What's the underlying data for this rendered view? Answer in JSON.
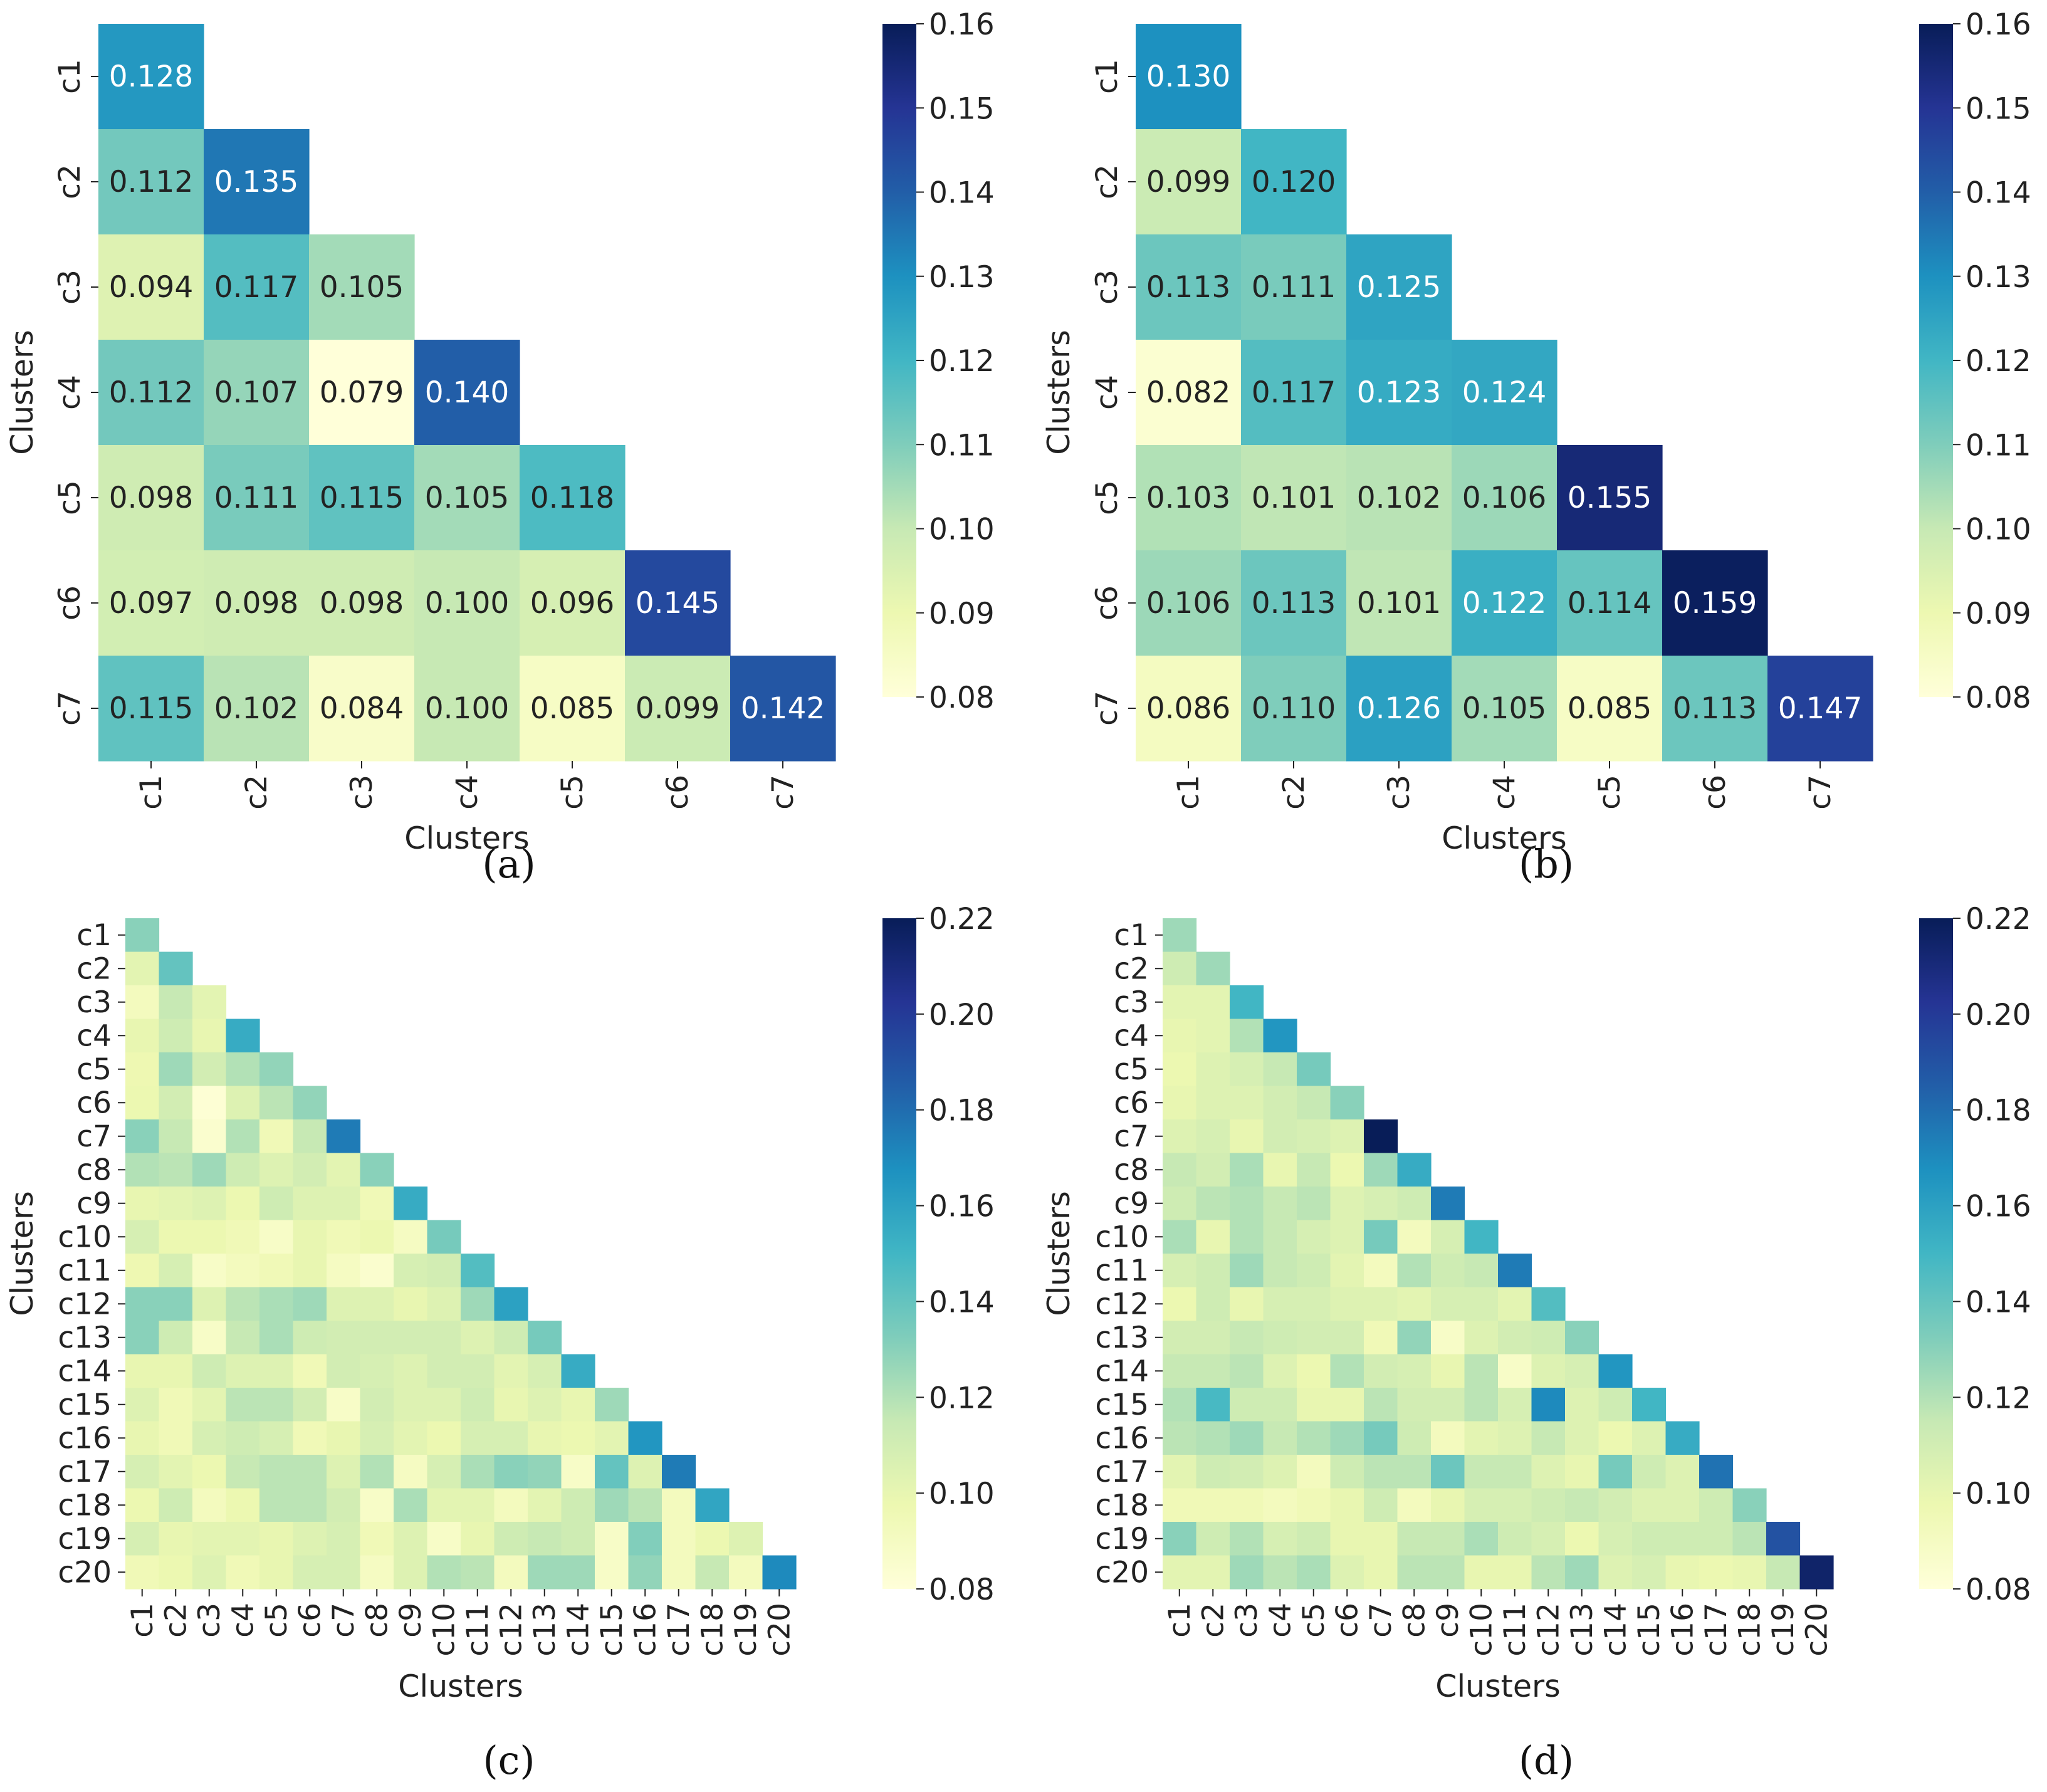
{
  "figure_captions": [
    "(a)",
    "(b)",
    "(c)",
    "(d)"
  ],
  "colors": {
    "scale": [
      "#ffffd9",
      "#edf8b1",
      "#c7e9b4",
      "#7fcdbb",
      "#41b6c4",
      "#1d91c0",
      "#225ea8",
      "#253494",
      "#081d58"
    ],
    "text_dark": "#222222",
    "text_light": "#ffffff"
  },
  "chart_data": [
    {
      "type": "heatmap",
      "caption": "(a)",
      "xlabel": "Clusters",
      "ylabel": "Clusters",
      "labels": [
        "c1",
        "c2",
        "c3",
        "c4",
        "c5",
        "c6",
        "c7"
      ],
      "annotate": true,
      "vmin": 0.08,
      "vmax": 0.16,
      "colorbar_ticks": [
        "0.08",
        "0.09",
        "0.10",
        "0.11",
        "0.12",
        "0.13",
        "0.14",
        "0.15",
        "0.16"
      ],
      "matrix": [
        [
          0.128
        ],
        [
          0.112,
          0.135
        ],
        [
          0.094,
          0.117,
          0.105
        ],
        [
          0.112,
          0.107,
          0.079,
          0.14
        ],
        [
          0.098,
          0.111,
          0.115,
          0.105,
          0.118
        ],
        [
          0.097,
          0.098,
          0.098,
          0.1,
          0.096,
          0.145
        ],
        [
          0.115,
          0.102,
          0.084,
          0.1,
          0.085,
          0.099,
          0.142
        ]
      ]
    },
    {
      "type": "heatmap",
      "caption": "(b)",
      "xlabel": "Clusters",
      "ylabel": "Clusters",
      "labels": [
        "c1",
        "c2",
        "c3",
        "c4",
        "c5",
        "c6",
        "c7"
      ],
      "annotate": true,
      "vmin": 0.08,
      "vmax": 0.16,
      "colorbar_ticks": [
        "0.08",
        "0.09",
        "0.10",
        "0.11",
        "0.12",
        "0.13",
        "0.14",
        "0.15",
        "0.16"
      ],
      "matrix": [
        [
          0.13
        ],
        [
          0.099,
          0.12
        ],
        [
          0.113,
          0.111,
          0.125
        ],
        [
          0.082,
          0.117,
          0.123,
          0.124
        ],
        [
          0.103,
          0.101,
          0.102,
          0.106,
          0.155
        ],
        [
          0.106,
          0.113,
          0.101,
          0.122,
          0.114,
          0.159
        ],
        [
          0.086,
          0.11,
          0.126,
          0.105,
          0.085,
          0.113,
          0.147
        ]
      ]
    },
    {
      "type": "heatmap",
      "caption": "(c)",
      "xlabel": "Clusters",
      "ylabel": "Clusters",
      "labels": [
        "c1",
        "c2",
        "c3",
        "c4",
        "c5",
        "c6",
        "c7",
        "c8",
        "c9",
        "c10",
        "c11",
        "c12",
        "c13",
        "c14",
        "c15",
        "c16",
        "c17",
        "c18",
        "c19",
        "c20"
      ],
      "annotate": false,
      "vmin": 0.08,
      "vmax": 0.22,
      "colorbar_ticks": [
        "0.08",
        "0.10",
        "0.12",
        "0.14",
        "0.16",
        "0.18",
        "0.20",
        "0.22"
      ],
      "matrix": [
        [
          0.13
        ],
        [
          0.102,
          0.14
        ],
        [
          0.092,
          0.115,
          0.102
        ],
        [
          0.1,
          0.112,
          0.1,
          0.155
        ],
        [
          0.097,
          0.125,
          0.11,
          0.12,
          0.128
        ],
        [
          0.098,
          0.11,
          0.082,
          0.105,
          0.118,
          0.128
        ],
        [
          0.13,
          0.115,
          0.085,
          0.12,
          0.095,
          0.115,
          0.175
        ],
        [
          0.12,
          0.118,
          0.125,
          0.112,
          0.105,
          0.11,
          0.102,
          0.13
        ],
        [
          0.1,
          0.102,
          0.105,
          0.098,
          0.112,
          0.105,
          0.105,
          0.095,
          0.155
        ],
        [
          0.108,
          0.098,
          0.098,
          0.095,
          0.088,
          0.1,
          0.095,
          0.098,
          0.09,
          0.135
        ],
        [
          0.097,
          0.108,
          0.088,
          0.092,
          0.095,
          0.1,
          0.09,
          0.085,
          0.108,
          0.11,
          0.145
        ],
        [
          0.13,
          0.13,
          0.105,
          0.118,
          0.122,
          0.125,
          0.105,
          0.105,
          0.1,
          0.105,
          0.125,
          0.16
        ],
        [
          0.13,
          0.112,
          0.088,
          0.115,
          0.122,
          0.112,
          0.11,
          0.11,
          0.11,
          0.11,
          0.105,
          0.112,
          0.135
        ],
        [
          0.1,
          0.1,
          0.112,
          0.105,
          0.105,
          0.095,
          0.11,
          0.108,
          0.105,
          0.11,
          0.11,
          0.102,
          0.108,
          0.155
        ],
        [
          0.105,
          0.095,
          0.102,
          0.118,
          0.118,
          0.11,
          0.088,
          0.11,
          0.105,
          0.105,
          0.112,
          0.1,
          0.105,
          0.1,
          0.125
        ],
        [
          0.1,
          0.095,
          0.108,
          0.112,
          0.108,
          0.095,
          0.1,
          0.108,
          0.102,
          0.098,
          0.108,
          0.108,
          0.1,
          0.098,
          0.102,
          0.165
        ],
        [
          0.108,
          0.102,
          0.098,
          0.115,
          0.118,
          0.118,
          0.105,
          0.12,
          0.09,
          0.108,
          0.122,
          0.13,
          0.128,
          0.088,
          0.14,
          0.105,
          0.175
        ],
        [
          0.098,
          0.112,
          0.092,
          0.098,
          0.118,
          0.118,
          0.11,
          0.088,
          0.122,
          0.102,
          0.102,
          0.092,
          0.102,
          0.112,
          0.125,
          0.118,
          0.092,
          0.158
        ],
        [
          0.108,
          0.1,
          0.102,
          0.102,
          0.1,
          0.105,
          0.108,
          0.095,
          0.105,
          0.088,
          0.1,
          0.112,
          0.115,
          0.112,
          0.088,
          0.132,
          0.092,
          0.098,
          0.105
        ],
        [
          0.095,
          0.098,
          0.105,
          0.095,
          0.1,
          0.108,
          0.108,
          0.09,
          0.105,
          0.12,
          0.118,
          0.092,
          0.125,
          0.125,
          0.088,
          0.128,
          0.092,
          0.115,
          0.092,
          0.17
        ]
      ]
    },
    {
      "type": "heatmap",
      "caption": "(d)",
      "xlabel": "Clusters",
      "ylabel": "Clusters",
      "labels": [
        "c1",
        "c2",
        "c3",
        "c4",
        "c5",
        "c6",
        "c7",
        "c8",
        "c9",
        "c10",
        "c11",
        "c12",
        "c13",
        "c14",
        "c15",
        "c16",
        "c17",
        "c18",
        "c19",
        "c20"
      ],
      "annotate": false,
      "vmin": 0.08,
      "vmax": 0.22,
      "colorbar_ticks": [
        "0.08",
        "0.10",
        "0.12",
        "0.14",
        "0.16",
        "0.18",
        "0.20",
        "0.22"
      ],
      "matrix": [
        [
          0.125
        ],
        [
          0.112,
          0.125
        ],
        [
          0.102,
          0.102,
          0.15
        ],
        [
          0.1,
          0.102,
          0.12,
          0.165
        ],
        [
          0.098,
          0.105,
          0.108,
          0.115,
          0.135
        ],
        [
          0.1,
          0.105,
          0.105,
          0.11,
          0.115,
          0.13
        ],
        [
          0.105,
          0.108,
          0.1,
          0.11,
          0.108,
          0.105,
          0.22
        ],
        [
          0.115,
          0.11,
          0.122,
          0.1,
          0.115,
          0.098,
          0.125,
          0.155
        ],
        [
          0.112,
          0.118,
          0.12,
          0.115,
          0.118,
          0.105,
          0.108,
          0.112,
          0.175
        ],
        [
          0.122,
          0.1,
          0.12,
          0.115,
          0.108,
          0.105,
          0.135,
          0.092,
          0.108,
          0.15
        ],
        [
          0.108,
          0.112,
          0.125,
          0.115,
          0.112,
          0.102,
          0.092,
          0.12,
          0.112,
          0.115,
          0.175
        ],
        [
          0.098,
          0.112,
          0.1,
          0.108,
          0.108,
          0.105,
          0.105,
          0.102,
          0.108,
          0.108,
          0.102,
          0.145
        ],
        [
          0.11,
          0.11,
          0.115,
          0.112,
          0.11,
          0.11,
          0.095,
          0.128,
          0.088,
          0.105,
          0.11,
          0.112,
          0.13
        ],
        [
          0.115,
          0.115,
          0.118,
          0.105,
          0.098,
          0.12,
          0.11,
          0.108,
          0.1,
          0.118,
          0.088,
          0.105,
          0.108,
          0.165
        ],
        [
          0.12,
          0.148,
          0.112,
          0.112,
          0.1,
          0.1,
          0.118,
          0.11,
          0.11,
          0.118,
          0.108,
          0.17,
          0.105,
          0.112,
          0.15
        ],
        [
          0.118,
          0.12,
          0.125,
          0.115,
          0.12,
          0.125,
          0.135,
          0.112,
          0.092,
          0.102,
          0.105,
          0.115,
          0.105,
          0.098,
          0.105,
          0.155
        ],
        [
          0.102,
          0.112,
          0.11,
          0.105,
          0.092,
          0.112,
          0.118,
          0.118,
          0.138,
          0.115,
          0.115,
          0.105,
          0.1,
          0.135,
          0.112,
          0.105,
          0.178
        ],
        [
          0.095,
          0.095,
          0.095,
          0.092,
          0.095,
          0.1,
          0.112,
          0.092,
          0.1,
          0.108,
          0.108,
          0.112,
          0.115,
          0.11,
          0.105,
          0.105,
          0.112,
          0.13
        ],
        [
          0.13,
          0.112,
          0.12,
          0.108,
          0.112,
          0.1,
          0.1,
          0.115,
          0.115,
          0.122,
          0.112,
          0.108,
          0.098,
          0.108,
          0.112,
          0.112,
          0.112,
          0.118,
          0.19
        ],
        [
          0.102,
          0.102,
          0.125,
          0.118,
          0.122,
          0.105,
          0.1,
          0.118,
          0.118,
          0.1,
          0.1,
          0.118,
          0.125,
          0.105,
          0.108,
          0.1,
          0.098,
          0.1,
          0.115,
          0.215
        ]
      ]
    }
  ]
}
